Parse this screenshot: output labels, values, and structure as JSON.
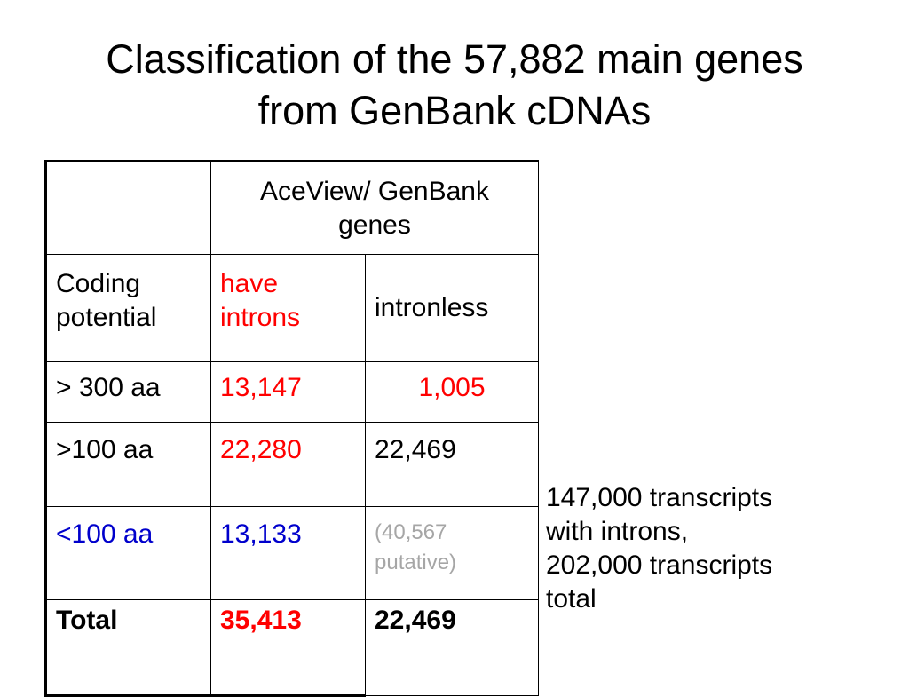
{
  "title": {
    "line1": "Classification of the 57,882 main genes",
    "line2": "from GenBank cDNAs"
  },
  "table": {
    "header_span_line1": "AceView/ GenBank",
    "header_span_line2": "genes",
    "row_label_header_line1": "Coding",
    "row_label_header_line2": "potential",
    "col_a_header_line1": "have",
    "col_a_header_line2": "introns",
    "col_b_header": "intronless",
    "rows": [
      {
        "label": "> 300 aa",
        "a": "13,147",
        "b": "1,005"
      },
      {
        "label": ">100 aa",
        "a": "22,280",
        "b": "22,469"
      },
      {
        "label": "<100 aa",
        "a": "13,133",
        "b_line1": "(40,567",
        "b_line2": "putative)"
      },
      {
        "label": "Total",
        "a": "35,413",
        "b": "22,469"
      }
    ]
  },
  "note": {
    "line1": "147,000 transcripts",
    "line2": "with introns,",
    "line3": "202,000 transcripts",
    "line4": "total"
  },
  "colors": {
    "red": "#ff0000",
    "blue": "#0000cc",
    "gray": "#a6a6a6"
  }
}
